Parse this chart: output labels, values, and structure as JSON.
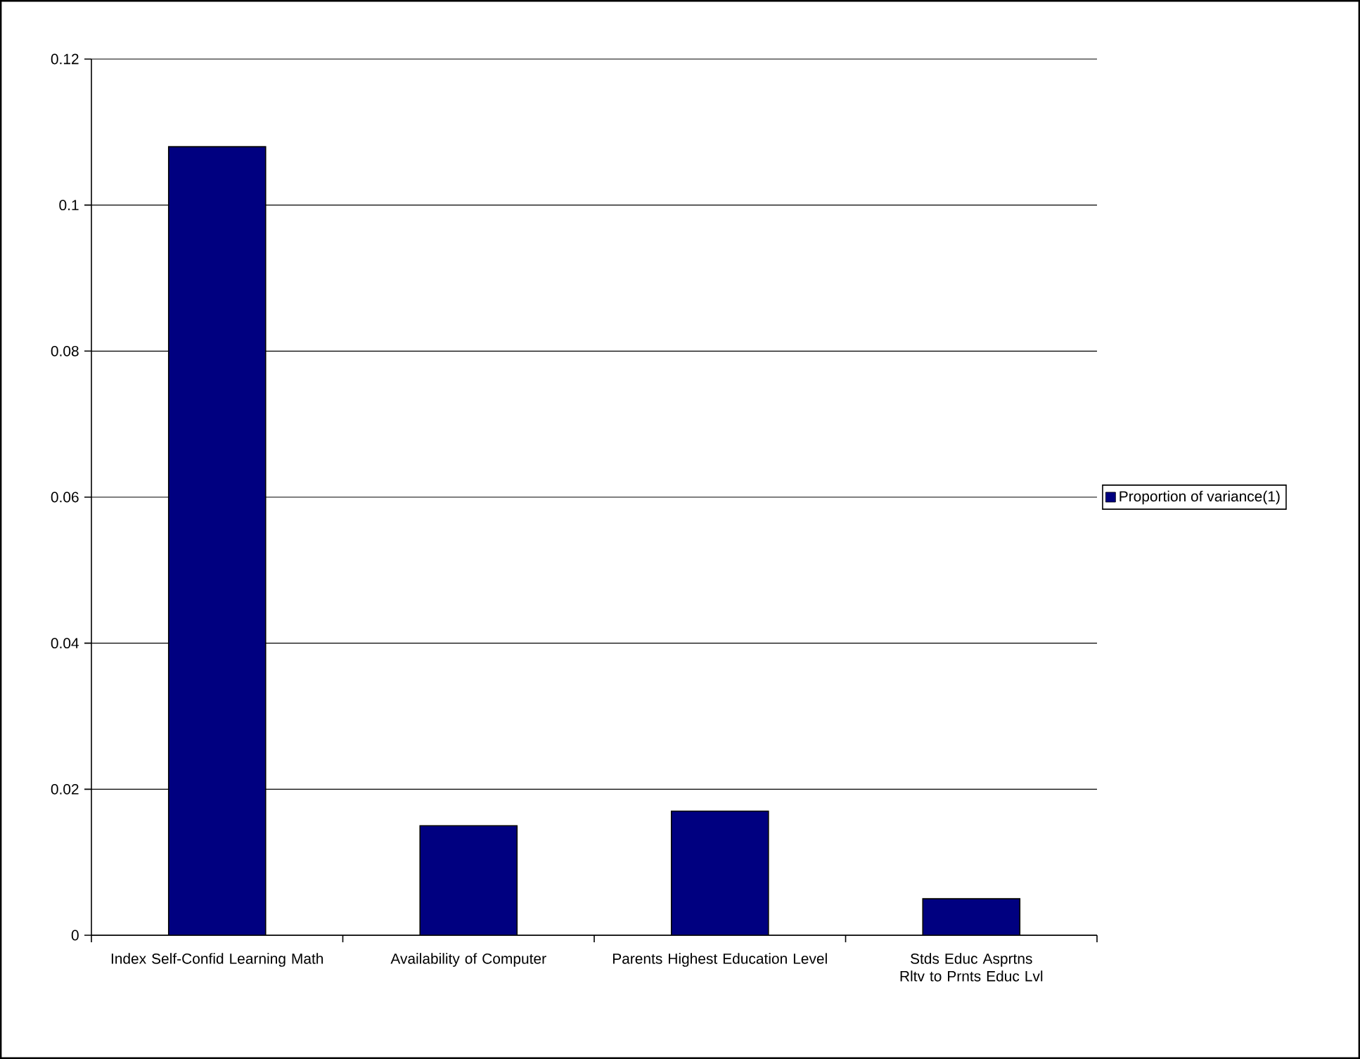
{
  "chart_data": {
    "type": "bar",
    "categories": [
      "Index Self-Confid Learning Math",
      "Availability of Computer",
      "Parents Highest Education Level",
      "Stds Educ Asprtns Rltv to Prnts Educ Lvl"
    ],
    "series": [
      {
        "name": "Proportion of variance(1)",
        "color": "#000080",
        "values": [
          0.108,
          0.015,
          0.017,
          0.005
        ]
      }
    ],
    "ylim": [
      0,
      0.12
    ],
    "yticks": [
      0,
      0.02,
      0.04,
      0.06,
      0.08,
      0.1,
      0.12
    ],
    "grid": "y",
    "legend": "right"
  }
}
